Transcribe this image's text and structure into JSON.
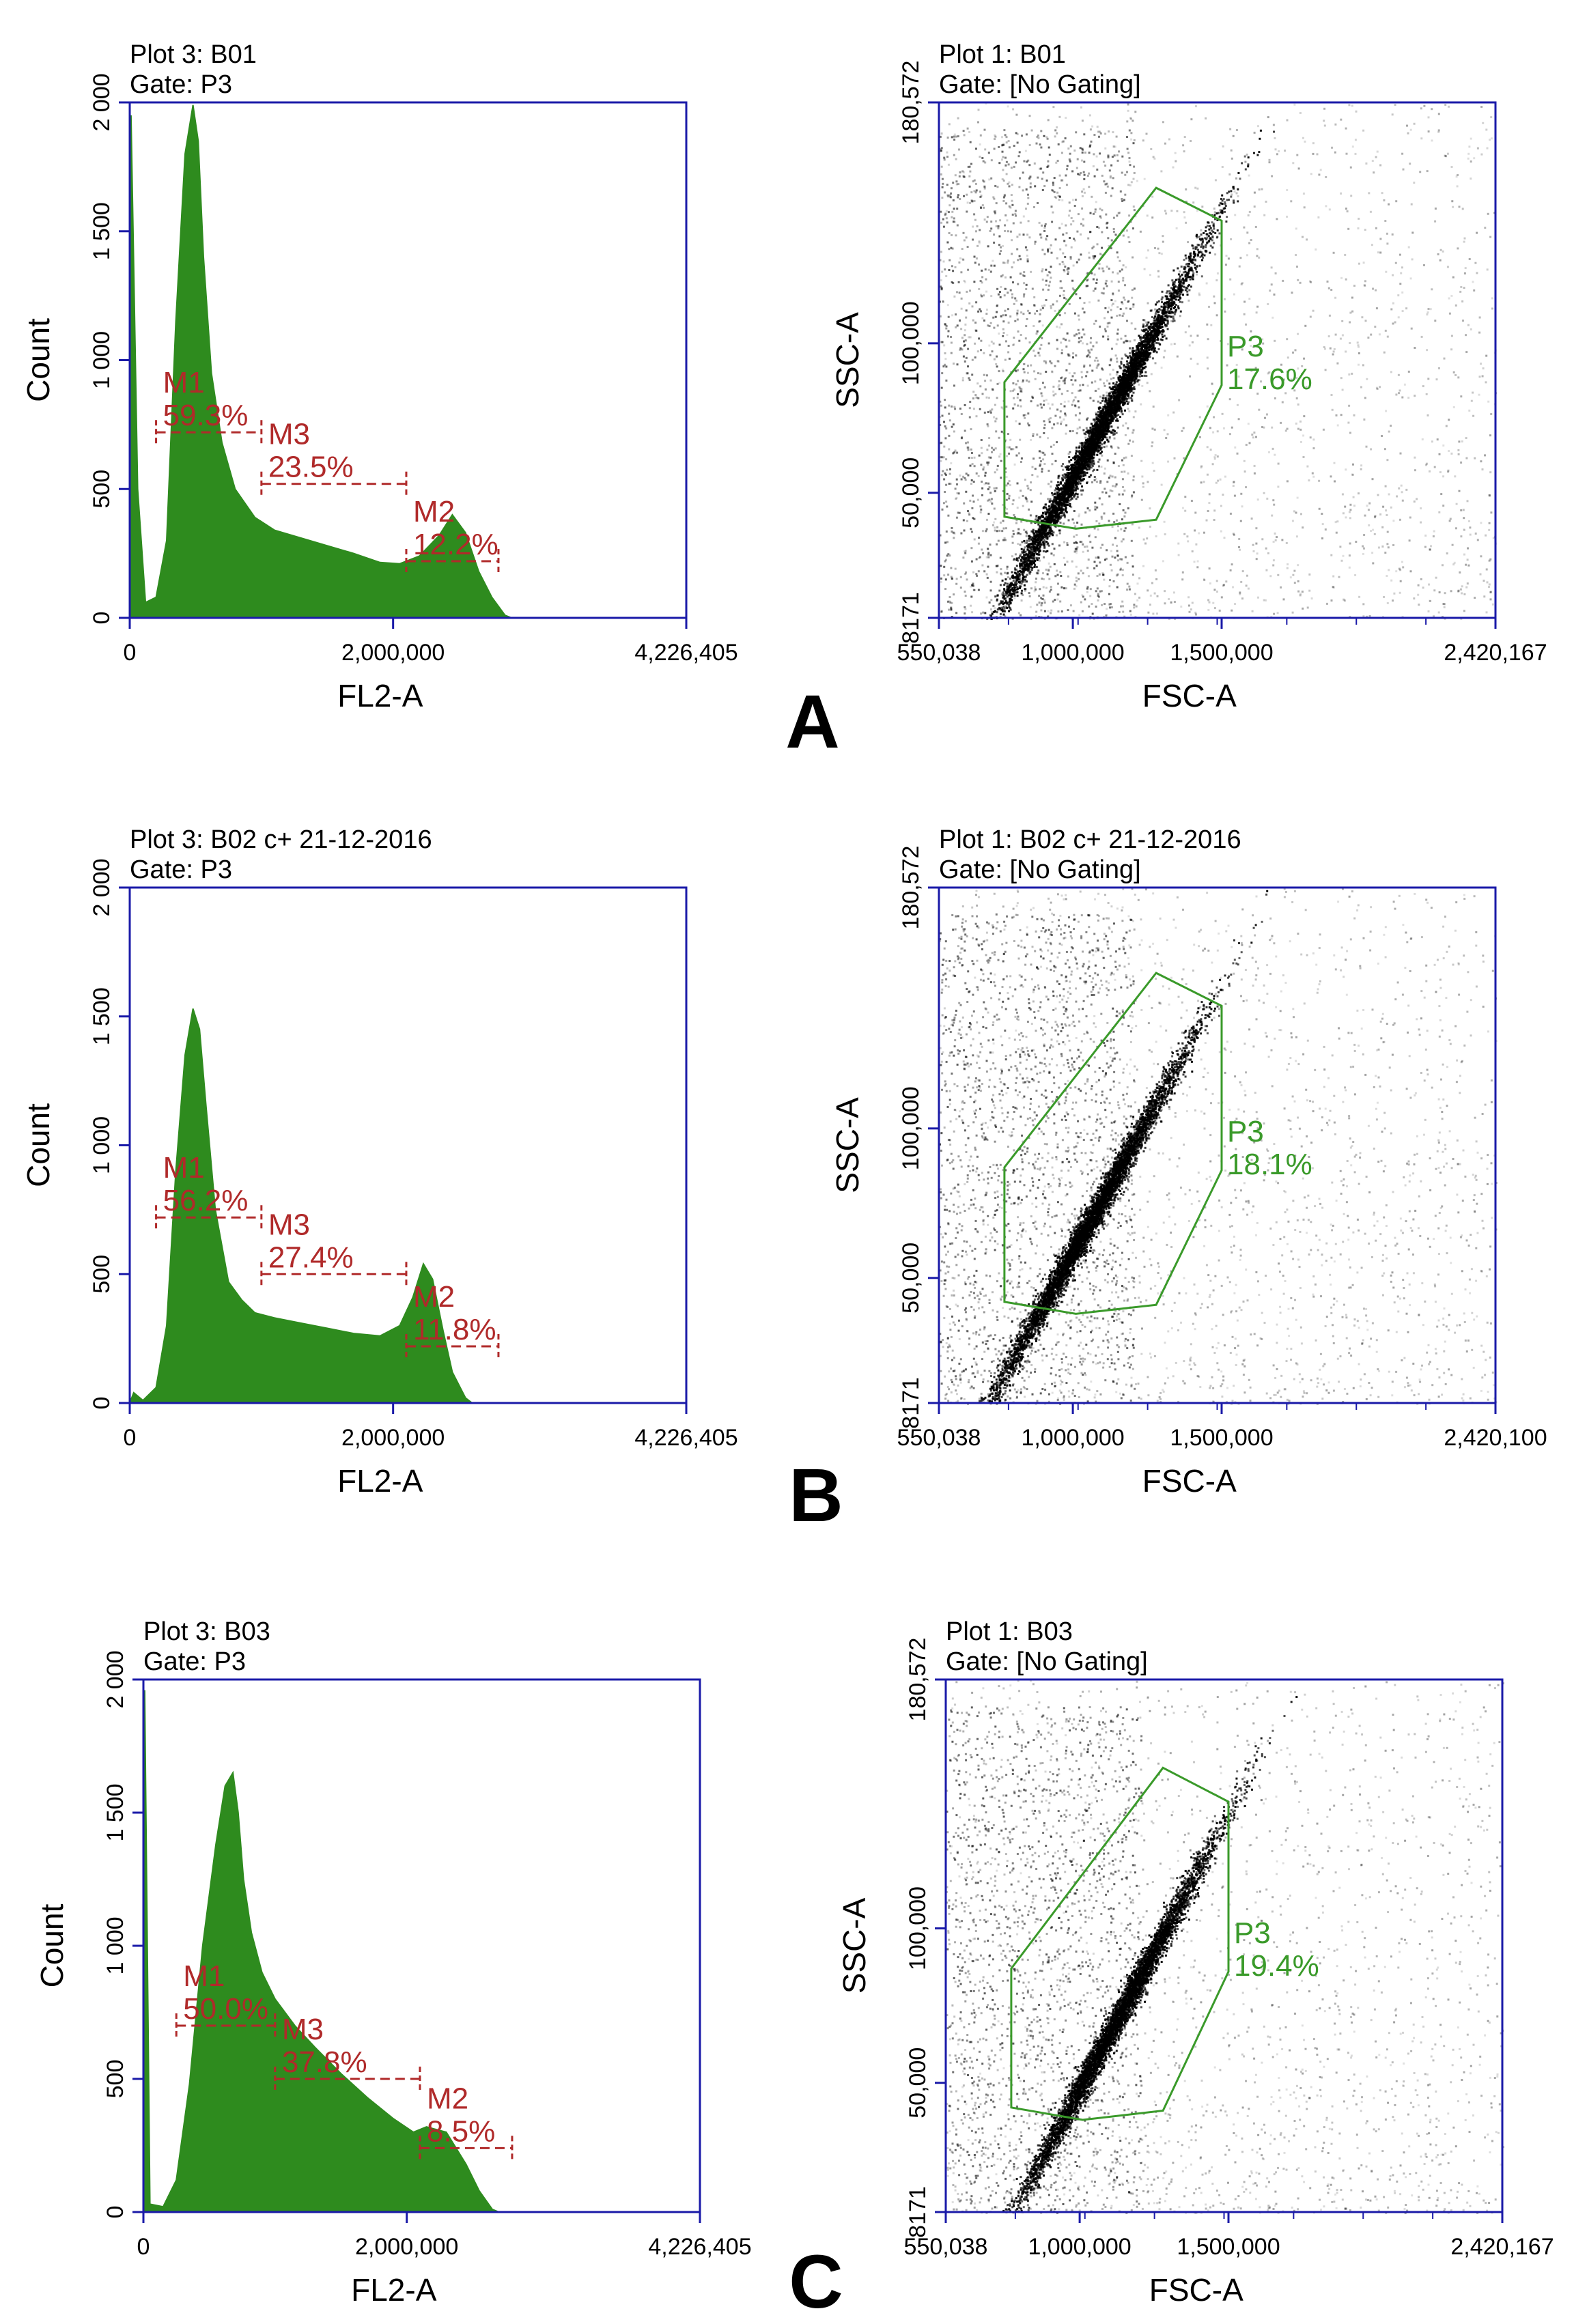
{
  "colors": {
    "axis": "#1a1aa8",
    "histogram_fill": "#2e8b1e",
    "marker": "#b02a2a",
    "gate": "#3a9a2a",
    "dots_dark": "#000000"
  },
  "chart_data": [
    {
      "panel": "A",
      "type": "area",
      "title": "Plot 3: B01",
      "gate": "Gate: P3",
      "xlabel": "FL2-A",
      "ylabel": "Count",
      "xlim": [
        0,
        4226405
      ],
      "ylim": [
        0,
        2000
      ],
      "x_tick_labels": [
        "0",
        "2,000,000",
        "4,226,405"
      ],
      "x_tick_values": [
        0,
        2000000,
        4226405
      ],
      "y_tick_labels": [
        "0",
        "500",
        "1 000",
        "1 500",
        "2 000"
      ],
      "y_tick_values": [
        0,
        500,
        1000,
        1500,
        2000
      ],
      "x": [
        0,
        10000,
        60000,
        120000,
        200000,
        280000,
        350000,
        420000,
        480000,
        520000,
        560000,
        620000,
        700000,
        800000,
        950000,
        1100000,
        1300000,
        1500000,
        1700000,
        1900000,
        2050000,
        2200000,
        2350000,
        2450000,
        2550000,
        2650000,
        2750000,
        2850000,
        2900000
      ],
      "values": [
        0,
        1950,
        500,
        60,
        80,
        300,
        1150,
        1800,
        1990,
        1850,
        1400,
        950,
        680,
        500,
        390,
        340,
        310,
        280,
        250,
        215,
        210,
        240,
        320,
        400,
        330,
        180,
        80,
        10,
        0
      ],
      "markers": [
        {
          "name": "M1",
          "value": "59.3%",
          "x_start": 200000,
          "x_end": 1000000,
          "y": 720
        },
        {
          "name": "M3",
          "value": "23.5%",
          "x_start": 1000000,
          "x_end": 2100000,
          "y": 520
        },
        {
          "name": "M2",
          "value": "12.2%",
          "x_start": 2100000,
          "x_end": 2800000,
          "y": 220
        }
      ]
    },
    {
      "panel": "A",
      "type": "scatter",
      "title": "Plot 1: B01",
      "gate": "Gate: [No Gating]",
      "xlabel": "FSC-A",
      "ylabel": "SSC-A",
      "xlim": [
        550038,
        2420167
      ],
      "ylim": [
        8171,
        180572
      ],
      "x_tick_labels": [
        "550,038",
        "1,000,000",
        "1,500,000",
        "2,420,167"
      ],
      "x_tick_values": [
        550038,
        1000000,
        1500000,
        2420167
      ],
      "y_tick_labels": [
        "8171",
        "50,000",
        "100,000",
        "180,572"
      ],
      "y_tick_values": [
        8171,
        50000,
        100000,
        180572
      ],
      "population_center": [
        1080000,
        70000
      ],
      "gate_polygon": [
        [
          1280000,
          152000
        ],
        [
          1500000,
          141000
        ],
        [
          1500000,
          86000
        ],
        [
          1280000,
          41000
        ],
        [
          1010000,
          38000
        ],
        [
          770000,
          42000
        ],
        [
          770000,
          87000
        ]
      ],
      "gate_label": "P3",
      "gate_value": "17.6%"
    },
    {
      "panel": "B",
      "type": "area",
      "title": "Plot 3: B02 c+ 21-12-2016",
      "gate": "Gate: P3",
      "xlabel": "FL2-A",
      "ylabel": "Count",
      "xlim": [
        0,
        4226405
      ],
      "ylim": [
        0,
        2000
      ],
      "x_tick_labels": [
        "0",
        "2,000,000",
        "4,226,405"
      ],
      "x_tick_values": [
        0,
        2000000,
        4226405
      ],
      "y_tick_labels": [
        "0",
        "500",
        "1 000",
        "1 500",
        "2 000"
      ],
      "y_tick_values": [
        0,
        500,
        1000,
        1500,
        2000
      ],
      "x": [
        0,
        30000,
        100000,
        200000,
        280000,
        350000,
        420000,
        480000,
        530000,
        580000,
        650000,
        750000,
        850000,
        950000,
        1100000,
        1300000,
        1500000,
        1700000,
        1900000,
        2050000,
        2150000,
        2230000,
        2300000,
        2380000,
        2450000,
        2550000,
        2600000
      ],
      "values": [
        0,
        40,
        10,
        60,
        300,
        900,
        1350,
        1530,
        1450,
        1150,
        750,
        470,
        400,
        350,
        330,
        310,
        290,
        270,
        260,
        300,
        410,
        540,
        480,
        280,
        120,
        20,
        0
      ],
      "markers": [
        {
          "name": "M1",
          "value": "56.2%",
          "x_start": 200000,
          "x_end": 1000000,
          "y": 720
        },
        {
          "name": "M3",
          "value": "27.4%",
          "x_start": 1000000,
          "x_end": 2100000,
          "y": 500
        },
        {
          "name": "M2",
          "value": "11.8%",
          "x_start": 2100000,
          "x_end": 2800000,
          "y": 220
        }
      ]
    },
    {
      "panel": "B",
      "type": "scatter",
      "title": "Plot 1: B02 c+ 21-12-2016",
      "gate": "Gate: [No Gating]",
      "xlabel": "FSC-A",
      "ylabel": "SSC-A",
      "xlim": [
        550038,
        2420100
      ],
      "ylim": [
        8171,
        180572
      ],
      "x_tick_labels": [
        "550,038",
        "1,000,000",
        "1,500,000",
        "2,420,100"
      ],
      "x_tick_values": [
        550038,
        1000000,
        1500000,
        2420100
      ],
      "y_tick_labels": [
        "8171",
        "50,000",
        "100,000",
        "180,572"
      ],
      "y_tick_values": [
        8171,
        50000,
        100000,
        180572
      ],
      "population_center": [
        1050000,
        68000
      ],
      "gate_polygon": [
        [
          1280000,
          152000
        ],
        [
          1500000,
          141000
        ],
        [
          1500000,
          86000
        ],
        [
          1280000,
          41000
        ],
        [
          1010000,
          38000
        ],
        [
          770000,
          42000
        ],
        [
          770000,
          87000
        ]
      ],
      "gate_label": "P3",
      "gate_value": "18.1%"
    },
    {
      "panel": "C",
      "type": "area",
      "title": "Plot 3: B03",
      "gate": "Gate: P3",
      "xlabel": "FL2-A",
      "ylabel": "Count",
      "xlim": [
        0,
        4226405
      ],
      "ylim": [
        0,
        2000
      ],
      "x_tick_labels": [
        "0",
        "2,000,000",
        "4,226,405"
      ],
      "x_tick_values": [
        0,
        2000000,
        4226405
      ],
      "y_tick_labels": [
        "0",
        "500",
        "1 000",
        "1 500",
        "2 000"
      ],
      "y_tick_values": [
        0,
        500,
        1000,
        1500,
        2000
      ],
      "x": [
        0,
        10000,
        50000,
        150000,
        250000,
        350000,
        450000,
        550000,
        620000,
        680000,
        720000,
        760000,
        820000,
        900000,
        1000000,
        1150000,
        1300000,
        1500000,
        1700000,
        1900000,
        2050000,
        2150000,
        2300000,
        2450000,
        2550000,
        2650000,
        2700000
      ],
      "values": [
        0,
        1960,
        30,
        20,
        120,
        480,
        1000,
        1380,
        1600,
        1650,
        1500,
        1250,
        1050,
        900,
        800,
        700,
        620,
        520,
        430,
        350,
        300,
        320,
        300,
        180,
        80,
        10,
        0
      ],
      "markers": [
        {
          "name": "M1",
          "value": "50.0%",
          "x_start": 250000,
          "x_end": 1000000,
          "y": 700
        },
        {
          "name": "M3",
          "value": "37.8%",
          "x_start": 1000000,
          "x_end": 2100000,
          "y": 500
        },
        {
          "name": "M2",
          "value": "8.5%",
          "x_start": 2100000,
          "x_end": 2800000,
          "y": 240
        }
      ]
    },
    {
      "panel": "C",
      "type": "scatter",
      "title": "Plot 1: B03",
      "gate": "Gate: [No Gating]",
      "xlabel": "FSC-A",
      "ylabel": "SSC-A",
      "xlim": [
        550038,
        2420167
      ],
      "ylim": [
        8171,
        180572
      ],
      "x_tick_labels": [
        "550,038",
        "1,000,000",
        "1,500,000",
        "2,420,167"
      ],
      "x_tick_values": [
        550038,
        1000000,
        1500000,
        2420167
      ],
      "y_tick_labels": [
        "8171",
        "50,000",
        "100,000",
        "180,572"
      ],
      "y_tick_values": [
        8171,
        50000,
        100000,
        180572
      ],
      "population_center": [
        1120000,
        70000
      ],
      "gate_polygon": [
        [
          1280000,
          152000
        ],
        [
          1500000,
          141000
        ],
        [
          1500000,
          86000
        ],
        [
          1280000,
          41000
        ],
        [
          1010000,
          38000
        ],
        [
          770000,
          42000
        ],
        [
          770000,
          87000
        ]
      ],
      "gate_label": "P3",
      "gate_value": "19.4%"
    }
  ],
  "panel_letters": [
    "A",
    "B",
    "C"
  ]
}
